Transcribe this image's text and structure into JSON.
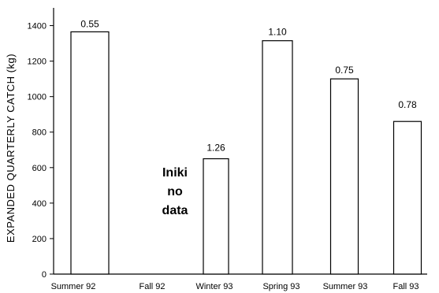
{
  "chart_data": {
    "type": "bar",
    "title": "",
    "xlabel": "",
    "ylabel": "EXPANDED QUARTERLY CATCH (kg)",
    "categories": [
      "Summer 92",
      "Fall 92",
      "Winter 93",
      "Spring 93",
      "Summer 93",
      "Fall 93"
    ],
    "values": [
      1365,
      null,
      650,
      1315,
      1100,
      860
    ],
    "data_labels": [
      "0.55",
      null,
      "1.26",
      "1.10",
      "0.75",
      "0.78"
    ],
    "ylim": [
      0,
      1500
    ],
    "yticks": [
      0,
      200,
      400,
      600,
      800,
      1000,
      1200,
      1400
    ],
    "grid": false,
    "legend": "none",
    "annotations": [
      {
        "category_index": 1,
        "lines": [
          "Iniki",
          "no",
          "data"
        ]
      }
    ]
  },
  "colors": {
    "background": "#ffffff",
    "bar_fill": "#ffffff",
    "bar_stroke": "#000000",
    "ink": "#000000"
  }
}
